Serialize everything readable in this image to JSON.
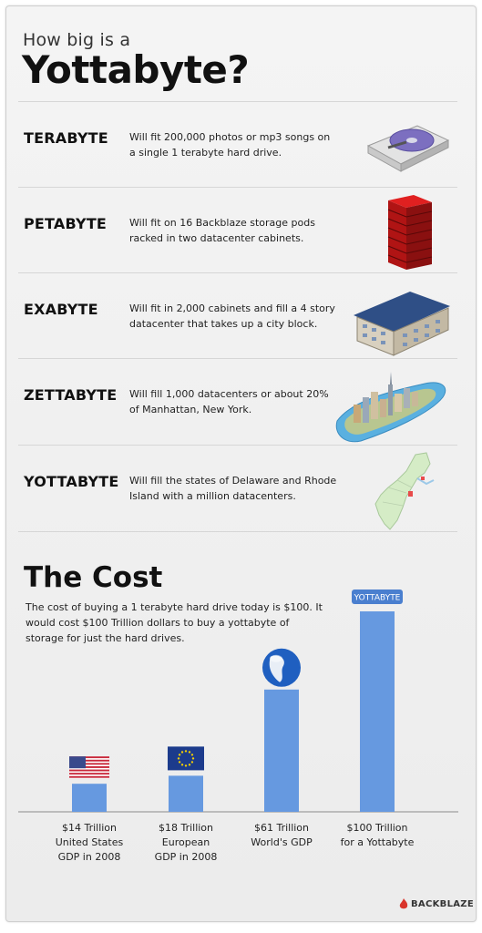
{
  "header": {
    "subtitle": "How big is a",
    "title": "Yottabyte?"
  },
  "units": [
    {
      "label": "TERABYTE",
      "desc": "Will fit 200,000 photos or mp3 songs on a single 1 terabyte hard drive.",
      "icon": "hard-drive-icon"
    },
    {
      "label": "PETABYTE",
      "desc": "Will fit on 16 Backblaze storage pods racked in two datacenter cabinets.",
      "icon": "storage-pods-icon"
    },
    {
      "label": "EXABYTE",
      "desc": "Will fit in 2,000 cabinets and fill a 4 story datacenter that takes up a city block.",
      "icon": "datacenter-building-icon"
    },
    {
      "label": "ZETTABYTE",
      "desc": "Will fill 1,000 datacenters or about 20% of Manhattan, New York.",
      "icon": "manhattan-city-icon"
    },
    {
      "label": "YOTTABYTE",
      "desc": "Will fill the states of Delaware and Rhode Island with a million datacenters.",
      "icon": "east-coast-map-icon"
    }
  ],
  "cost": {
    "title": "The Cost",
    "desc": "The cost of buying a 1 terabyte hard drive today is $100. It would cost $100 Trillion dollars to buy a yottabyte of storage for just the hard drives."
  },
  "chart_data": {
    "type": "bar",
    "categories": [
      "$14 Trillion United States GDP in 2008",
      "$18 Trillion European GDP in 2008",
      "$61 Trillion World's GDP",
      "$100 Trillion for a Yottabyte"
    ],
    "values": [
      14,
      18,
      61,
      100
    ],
    "labels": [
      [
        "$14 Trillion",
        "United States",
        "GDP in 2008"
      ],
      [
        "$18 Trillion",
        "European",
        "GDP in 2008"
      ],
      [
        "$61 Trillion",
        "World's GDP"
      ],
      [
        "$100 Trillion",
        "for a Yottabyte"
      ]
    ],
    "icons": [
      "us-flag-icon",
      "eu-flag-icon",
      "globe-icon",
      "yottabyte-badge"
    ],
    "badge_text": "YOTTABYTE",
    "ylim": [
      0,
      100
    ],
    "bar_color": "#6699e0",
    "badge_color": "#4a7fcf"
  },
  "brand": {
    "name": "BACKBLAZE",
    "color": "#d9342b"
  }
}
